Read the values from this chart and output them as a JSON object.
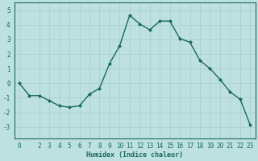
{
  "x": [
    0,
    1,
    2,
    3,
    4,
    5,
    6,
    7,
    8,
    9,
    10,
    11,
    12,
    13,
    14,
    15,
    16,
    17,
    18,
    19,
    20,
    21,
    22,
    23
  ],
  "y": [
    0,
    -0.85,
    -0.85,
    -1.2,
    -1.55,
    -1.65,
    -1.55,
    -0.75,
    -0.35,
    1.35,
    2.55,
    4.65,
    4.05,
    3.65,
    4.25,
    4.25,
    3.05,
    2.8,
    1.55,
    1.0,
    0.25,
    -0.6,
    -1.1,
    -2.85
  ],
  "line_color": "#1a6b5a",
  "marker": "D",
  "marker_size": 2.0,
  "bg_color": "#bde0e0",
  "grid_color": "#a8cccc",
  "xlabel": "Humidex (Indice chaleur)",
  "ylim": [
    -3.8,
    5.5
  ],
  "xlim": [
    -0.5,
    23.5
  ],
  "yticks": [
    -3,
    -2,
    -1,
    0,
    1,
    2,
    3,
    4,
    5
  ],
  "xticks": [
    0,
    2,
    3,
    4,
    5,
    6,
    7,
    8,
    9,
    10,
    11,
    12,
    13,
    14,
    15,
    16,
    17,
    18,
    19,
    20,
    21,
    22,
    23
  ],
  "font_color": "#1a6b5a",
  "xlabel_fontsize": 6.0,
  "tick_fontsize": 5.5,
  "linewidth": 1.0
}
